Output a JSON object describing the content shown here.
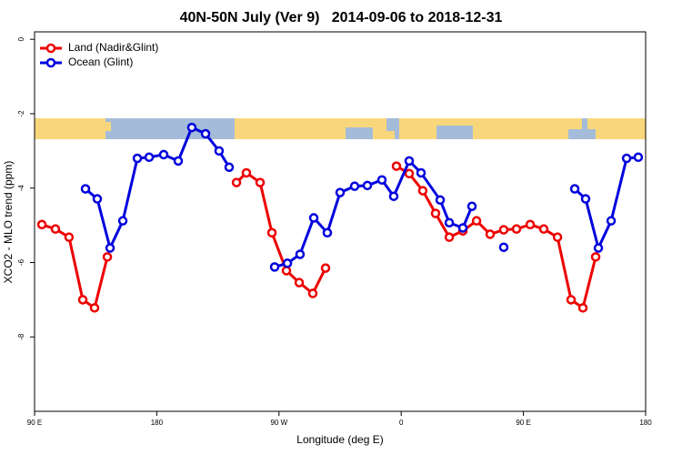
{
  "chart_data": {
    "type": "line",
    "title": "40N-50N July (Ver 9)   2014-09-06 to 2018-12-31",
    "xlabel": "Longitude (deg E)",
    "ylabel": "XCO2 - MLO trend (ppm)",
    "xlim": [
      90,
      540
    ],
    "ylim": [
      -10,
      0.2
    ],
    "xticks": [
      {
        "value": 90,
        "label": "90 E"
      },
      180,
      {
        "value": 270,
        "label": "90 W"
      },
      {
        "value": 360,
        "label": "0"
      },
      {
        "value": 450,
        "label": "90 E"
      },
      {
        "value": 540,
        "label": "180"
      }
    ],
    "yticks": [
      0,
      -2,
      -4,
      -6,
      -8
    ],
    "legend": "top-left",
    "series": [
      {
        "name": "Land (Nadir&Glint)",
        "color": "#ee0000",
        "x": [
          95.4,
          105.4,
          115.4,
          125.5,
          134.2,
          143.6,
          null,
          238.7,
          246.0,
          256.1,
          264.8,
          275.5,
          284.9,
          294.9,
          304.3,
          null,
          356.5,
          365.9,
          375.9,
          385.3,
          395.4,
          405.4,
          415.5,
          425.5,
          435.5,
          444.9,
          455.0,
          465.0,
          475.1,
          485.1,
          493.8,
          503.2
        ],
        "values": [
          -4.98,
          -5.1,
          -5.32,
          -7.0,
          -7.22,
          -5.85,
          null,
          -3.85,
          -3.59,
          -3.85,
          -5.2,
          -6.22,
          -6.54,
          -6.83,
          -6.15,
          null,
          -3.41,
          -3.61,
          -4.07,
          -4.68,
          -5.32,
          -5.15,
          -4.88,
          -5.24,
          -5.12,
          -5.1,
          -4.98,
          -5.1,
          -5.32,
          -7.0,
          -7.22,
          -5.85
        ]
      },
      {
        "name": "Ocean (Glint)",
        "color": "#0000dd",
        "x": [
          127.5,
          136.2,
          145.6,
          155.0,
          165.7,
          174.4,
          185.1,
          195.8,
          205.8,
          215.9,
          225.9,
          233.3,
          null,
          266.8,
          276.2,
          285.5,
          295.6,
          305.6,
          315.0,
          325.7,
          335.1,
          345.8,
          354.5,
          365.9,
          374.6,
          388.7,
          395.4,
          405.4,
          412.1,
          null,
          435.5,
          null,
          487.8,
          495.8,
          505.2,
          514.6,
          526.0,
          534.6
        ],
        "values": [
          -4.02,
          -4.29,
          -5.61,
          -4.88,
          -3.2,
          -3.17,
          -3.1,
          -3.27,
          -2.37,
          -2.54,
          -3.0,
          -3.44,
          null,
          -6.12,
          -6.02,
          -5.78,
          -4.8,
          -5.2,
          -4.12,
          -3.95,
          -3.93,
          -3.78,
          -4.22,
          -3.27,
          -3.59,
          -4.32,
          -4.93,
          -5.07,
          -4.49,
          null,
          -5.59,
          null,
          -4.02,
          -4.29,
          -5.61,
          -4.88,
          -3.2,
          -3.17
        ]
      }
    ]
  }
}
